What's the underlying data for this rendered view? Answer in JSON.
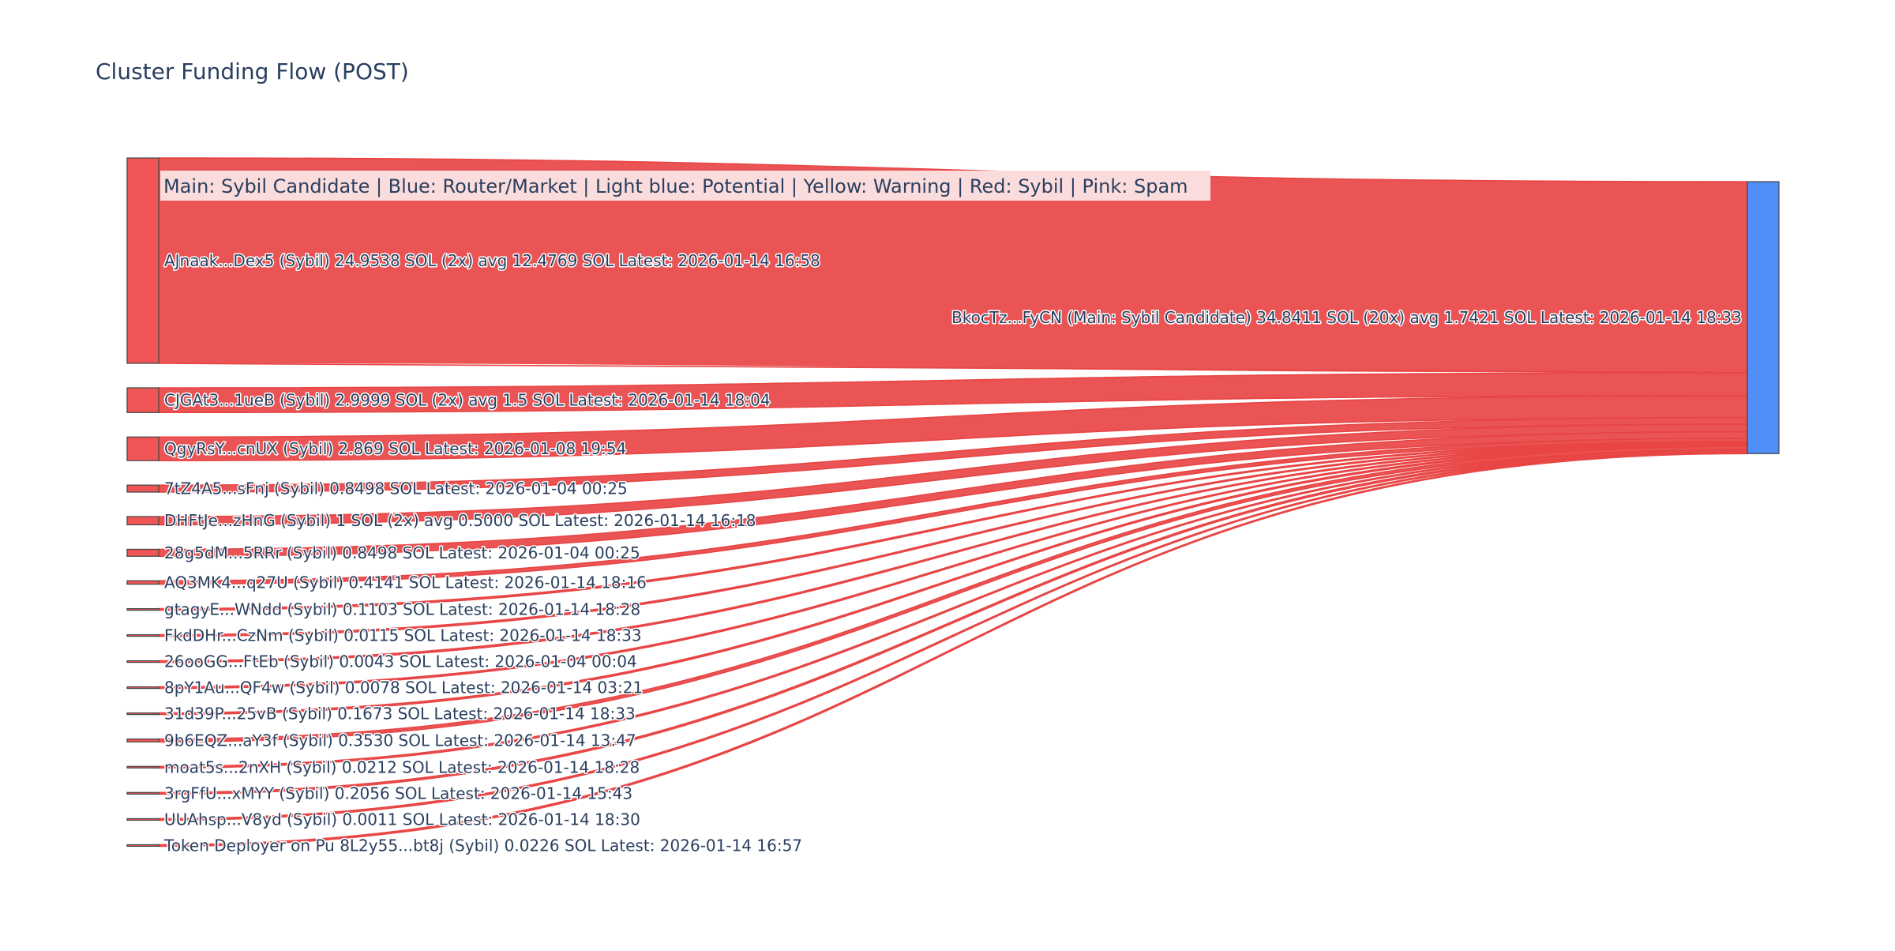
{
  "title": "Cluster Funding Flow (POST)",
  "legend": "Main: Sybil Candidate  |  Blue: Router/Market | Light blue: Potential | Yellow: Warning | Red: Sybil | Pink: Spam",
  "colors": {
    "sybil": "#ef5555",
    "main": "#4f8ff7",
    "link": "#e84545",
    "legend_bg": "#fbdcdc",
    "text": "#2a3f5f"
  },
  "chart_data": {
    "type": "sankey",
    "title": "Cluster Funding Flow (POST)",
    "target": {
      "id": "BkocTz...FyCN",
      "label": "BkocTz...FyCN (Main: Sybil Candidate) 34.8411 SOL (20x) avg 1.7421 SOL Latest: 2026-01-14 18:33",
      "category": "Main: Sybil Candidate",
      "value": 34.8411,
      "count": 20,
      "avg": 1.7421,
      "latest": "2026-01-14 18:33",
      "color": "#4f8ff7"
    },
    "sources": [
      {
        "id": "AJnaak...Dex5",
        "label": "AJnaak...Dex5 (Sybil) 24.9538 SOL (2x) avg 12.4769 SOL Latest: 2026-01-14 16:58",
        "category": "Sybil",
        "value": 24.9538,
        "count": 2,
        "avg": 12.4769,
        "latest": "2026-01-14 16:58"
      },
      {
        "id": "CJGAt3...1ueB",
        "label": "CJGAt3...1ueB (Sybil) 2.9999 SOL (2x) avg 1.5 SOL Latest: 2026-01-14 18:04",
        "category": "Sybil",
        "value": 2.9999,
        "count": 2,
        "avg": 1.5,
        "latest": "2026-01-14 18:04"
      },
      {
        "id": "QgyRsY...cnUX",
        "label": "QgyRsY...cnUX (Sybil) 2.869 SOL Latest: 2026-01-08 19:54",
        "category": "Sybil",
        "value": 2.869,
        "count": 1,
        "latest": "2026-01-08 19:54"
      },
      {
        "id": "7tZ4A5...sFnj",
        "label": "7tZ4A5...sFnj (Sybil) 0.8498 SOL Latest: 2026-01-04 00:25",
        "category": "Sybil",
        "value": 0.8498,
        "count": 1,
        "latest": "2026-01-04 00:25"
      },
      {
        "id": "DHFtJe...zHnG",
        "label": "DHFtJe...zHnG (Sybil) 1 SOL (2x) avg 0.5000 SOL Latest: 2026-01-14 16:18",
        "category": "Sybil",
        "value": 1.0,
        "count": 2,
        "avg": 0.5,
        "latest": "2026-01-14 16:18"
      },
      {
        "id": "28g5dM...5RRr",
        "label": "28g5dM...5RRr (Sybil) 0.8498 SOL Latest: 2026-01-04 00:25",
        "category": "Sybil",
        "value": 0.8498,
        "count": 1,
        "latest": "2026-01-04 00:25"
      },
      {
        "id": "AQ3MK4...q27U",
        "label": "AQ3MK4...q27U (Sybil) 0.4141 SOL Latest: 2026-01-14 18:16",
        "category": "Sybil",
        "value": 0.4141,
        "count": 1,
        "latest": "2026-01-14 18:16"
      },
      {
        "id": "gtagyE...WNdd",
        "label": "gtagyE...WNdd (Sybil) 0.1103 SOL Latest: 2026-01-14 18:28",
        "category": "Sybil",
        "value": 0.1103,
        "count": 1,
        "latest": "2026-01-14 18:28"
      },
      {
        "id": "FkdDHr...CzNm",
        "label": "FkdDHr...CzNm (Sybil) 0.0115 SOL Latest: 2026-01-14 18:33",
        "category": "Sybil",
        "value": 0.0115,
        "count": 1,
        "latest": "2026-01-14 18:33"
      },
      {
        "id": "26ooGG...FtEb",
        "label": "26ooGG...FtEb (Sybil) 0.0043 SOL Latest: 2026-01-04 00:04",
        "category": "Sybil",
        "value": 0.0043,
        "count": 1,
        "latest": "2026-01-04 00:04"
      },
      {
        "id": "8pY1Au...QF4w",
        "label": "8pY1Au...QF4w (Sybil) 0.0078 SOL Latest: 2026-01-14 03:21",
        "category": "Sybil",
        "value": 0.0078,
        "count": 1,
        "latest": "2026-01-14 03:21"
      },
      {
        "id": "31d39P...25vB",
        "label": "31d39P...25vB (Sybil) 0.1673 SOL Latest: 2026-01-14 18:33",
        "category": "Sybil",
        "value": 0.1673,
        "count": 1,
        "latest": "2026-01-14 18:33"
      },
      {
        "id": "9b6EQZ...aY3f",
        "label": "9b6EQZ...aY3f (Sybil) 0.3530 SOL Latest: 2026-01-14 13:47",
        "category": "Sybil",
        "value": 0.353,
        "count": 1,
        "latest": "2026-01-14 13:47"
      },
      {
        "id": "moat5s...2nXH",
        "label": "moat5s...2nXH (Sybil) 0.0212 SOL Latest: 2026-01-14 18:28",
        "category": "Sybil",
        "value": 0.0212,
        "count": 1,
        "latest": "2026-01-14 18:28"
      },
      {
        "id": "3rgFfU...xMYY",
        "label": "3rgFfU...xMYY (Sybil) 0.2056 SOL Latest: 2026-01-14 15:43",
        "category": "Sybil",
        "value": 0.2056,
        "count": 1,
        "latest": "2026-01-14 15:43"
      },
      {
        "id": "UUAhsp...V8yd",
        "label": "UUAhsp...V8yd (Sybil) 0.0011 SOL Latest: 2026-01-14 18:30",
        "category": "Sybil",
        "value": 0.0011,
        "count": 1,
        "latest": "2026-01-14 18:30"
      },
      {
        "id": "8L2y55...bt8j",
        "label": "Token Deployer on Pu 8L2y55...bt8j (Sybil) 0.0226 SOL Latest: 2026-01-14 16:57",
        "category": "Sybil",
        "value": 0.0226,
        "count": 1,
        "latest": "2026-01-14 16:57"
      }
    ]
  }
}
